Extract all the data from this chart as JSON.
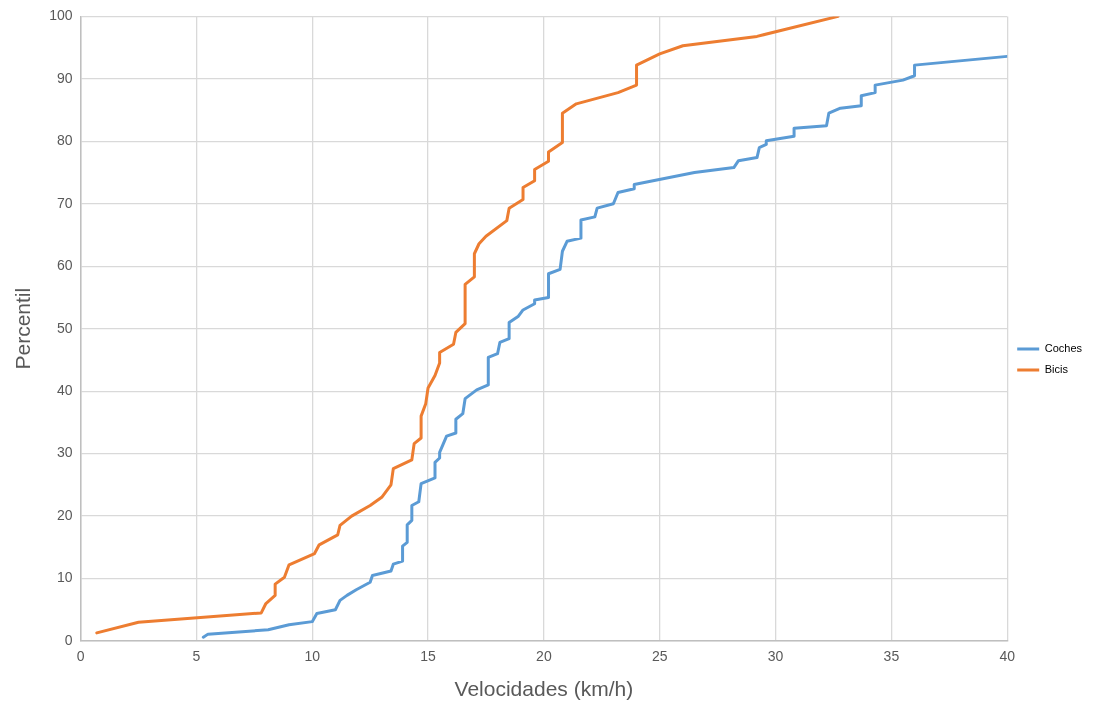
{
  "chart_data": {
    "type": "line",
    "xlabel": "Velocidades (km/h)",
    "ylabel": "Percentil",
    "xlim": [
      0,
      40
    ],
    "xticks": [
      0,
      5,
      10,
      15,
      20,
      25,
      30,
      35,
      40
    ],
    "ylim": [
      0,
      100
    ],
    "yticks": [
      0,
      10,
      20,
      30,
      40,
      50,
      60,
      70,
      80,
      90,
      100
    ],
    "grid": true,
    "legend": "right",
    "marker": "none",
    "line_style": "solid",
    "series": [
      {
        "name": "Coches",
        "color": "#5b9bd5",
        "x": [
          5.3,
          5.5,
          8.1,
          9,
          10,
          10.2,
          11,
          11.2,
          11.5,
          11.9,
          12.5,
          12.6,
          13.4,
          13.5,
          13.9,
          13.9,
          14.1,
          14.1,
          14.3,
          14.3,
          14.6,
          14.7,
          15.3,
          15.3,
          15.5,
          15.5,
          15.8,
          16.2,
          16.2,
          16.5,
          16.6,
          17.1,
          17.6,
          17.6,
          18,
          18.1,
          18.5,
          18.5,
          18.9,
          19.1,
          19.6,
          19.6,
          20.2,
          20.2,
          20.7,
          20.8,
          21,
          21.6,
          21.6,
          22.2,
          22.3,
          23,
          23.2,
          23.9,
          23.9,
          26.5,
          28.2,
          28.4,
          29.2,
          29.3,
          29.6,
          29.6,
          30.8,
          30.8,
          32.2,
          32.3,
          32.8,
          33.7,
          33.7,
          34.3,
          34.3,
          35.5,
          36,
          36,
          40
        ],
        "values": [
          0.6,
          1.1,
          1.8,
          2.6,
          3.1,
          4.4,
          5,
          6.5,
          7.3,
          8.2,
          9.4,
          10.5,
          11.2,
          12.3,
          12.8,
          15.2,
          15.8,
          18.6,
          19.3,
          21.7,
          22.3,
          25.2,
          26.1,
          28.6,
          29.3,
          30.2,
          32.8,
          33.3,
          35.5,
          36.4,
          38.8,
          40.2,
          41,
          45.4,
          46,
          47.8,
          48.4,
          51,
          52,
          53,
          54,
          54.6,
          55,
          58.8,
          59.5,
          62.4,
          64,
          64.5,
          67.4,
          67.9,
          69.3,
          70,
          71.8,
          72.4,
          73.1,
          75,
          75.8,
          76.9,
          77.4,
          79,
          79.5,
          80.1,
          80.8,
          82.1,
          82.5,
          84.5,
          85.3,
          85.7,
          87.3,
          87.8,
          89,
          89.8,
          90.5,
          92.2,
          93.6
        ]
      },
      {
        "name": "Bicis",
        "color": "#ed7d31",
        "x": [
          0.7,
          2.5,
          7.8,
          8,
          8.4,
          8.4,
          8.8,
          9,
          10.1,
          10.3,
          11.1,
          11.2,
          11.7,
          12.5,
          13,
          13.4,
          13.5,
          14.3,
          14.4,
          14.7,
          14.7,
          14.9,
          15,
          15.3,
          15.5,
          15.5,
          16.1,
          16.2,
          16.6,
          16.6,
          17,
          17,
          17.2,
          17.5,
          18.4,
          18.5,
          19.1,
          19.1,
          19.6,
          19.6,
          20.2,
          20.2,
          20.8,
          20.8,
          21.4,
          23.2,
          24,
          24,
          25,
          26,
          29.2,
          32.7
        ],
        "values": [
          1.3,
          3,
          4.5,
          6,
          7.3,
          9.1,
          10.2,
          12.2,
          14,
          15.4,
          17,
          18.5,
          20,
          21.7,
          23,
          25,
          27.6,
          29,
          31.6,
          32.5,
          36,
          38,
          40.5,
          42.5,
          44.5,
          46.2,
          47.5,
          49.4,
          50.8,
          57.1,
          58.3,
          62,
          63.6,
          64.8,
          67.3,
          69.3,
          70.7,
          72.6,
          73.7,
          75.5,
          76.8,
          78.3,
          79.8,
          84.5,
          86,
          87.8,
          89,
          92.2,
          94,
          95.3,
          96.8,
          100
        ]
      }
    ]
  }
}
